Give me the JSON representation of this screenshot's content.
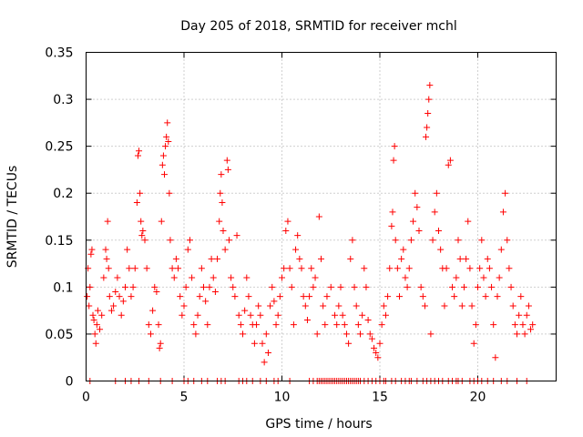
{
  "chart_data": {
    "type": "scatter",
    "title": "Day 205 of 2018, SRMTID for receiver mchl",
    "xlabel": "GPS time / hours",
    "ylabel": "SRMTID / TECUs",
    "xlim": [
      0,
      24
    ],
    "ylim": [
      0,
      0.35
    ],
    "xticks": [
      0,
      5,
      10,
      15,
      20
    ],
    "xtick_labels": [
      "0",
      "5",
      "10",
      "15",
      "20"
    ],
    "yticks": [
      0,
      0.05,
      0.1,
      0.15,
      0.2,
      0.25,
      0.3,
      0.35
    ],
    "ytick_labels": [
      "0",
      "0.05",
      "0.1",
      "0.15",
      "0.2",
      "0.25",
      "0.3",
      "0.35"
    ],
    "grid": true,
    "marker": "plus",
    "color": "#ff0000",
    "series": [
      {
        "name": "SRMTID",
        "points": [
          [
            0.05,
            0.09
          ],
          [
            0.1,
            0.12
          ],
          [
            0.15,
            0.08
          ],
          [
            0.2,
            0.1
          ],
          [
            0.25,
            0.135
          ],
          [
            0.3,
            0.14
          ],
          [
            0.35,
            0.07
          ],
          [
            0.4,
            0.065
          ],
          [
            0.45,
            0.05
          ],
          [
            0.5,
            0.04
          ],
          [
            0.55,
            0.06
          ],
          [
            0.6,
            0.075
          ],
          [
            0.7,
            0.055
          ],
          [
            0.8,
            0.07
          ],
          [
            0.9,
            0.11
          ],
          [
            1.0,
            0.14
          ],
          [
            1.05,
            0.13
          ],
          [
            1.1,
            0.17
          ],
          [
            1.15,
            0.12
          ],
          [
            1.2,
            0.09
          ],
          [
            1.3,
            0.075
          ],
          [
            1.4,
            0.08
          ],
          [
            1.5,
            0.095
          ],
          [
            1.6,
            0.11
          ],
          [
            1.7,
            0.09
          ],
          [
            1.8,
            0.07
          ],
          [
            1.9,
            0.085
          ],
          [
            2.0,
            0.1
          ],
          [
            2.1,
            0.14
          ],
          [
            2.2,
            0.12
          ],
          [
            2.3,
            0.09
          ],
          [
            2.4,
            0.1
          ],
          [
            2.5,
            0.12
          ],
          [
            2.6,
            0.19
          ],
          [
            2.65,
            0.24
          ],
          [
            2.7,
            0.245
          ],
          [
            2.75,
            0.2
          ],
          [
            2.8,
            0.17
          ],
          [
            2.85,
            0.155
          ],
          [
            2.9,
            0.16
          ],
          [
            3.0,
            0.15
          ],
          [
            3.1,
            0.12
          ],
          [
            3.2,
            0.06
          ],
          [
            3.3,
            0.05
          ],
          [
            3.4,
            0.075
          ],
          [
            3.5,
            0.1
          ],
          [
            3.6,
            0.095
          ],
          [
            3.7,
            0.06
          ],
          [
            3.75,
            0.035
          ],
          [
            3.8,
            0.04
          ],
          [
            3.85,
            0.17
          ],
          [
            3.9,
            0.23
          ],
          [
            3.95,
            0.24
          ],
          [
            4.0,
            0.22
          ],
          [
            4.05,
            0.25
          ],
          [
            4.1,
            0.26
          ],
          [
            4.15,
            0.275
          ],
          [
            4.2,
            0.255
          ],
          [
            4.25,
            0.2
          ],
          [
            4.3,
            0.15
          ],
          [
            4.4,
            0.12
          ],
          [
            4.5,
            0.11
          ],
          [
            4.6,
            0.13
          ],
          [
            4.7,
            0.12
          ],
          [
            4.8,
            0.09
          ],
          [
            4.9,
            0.07
          ],
          [
            5.0,
            0.08
          ],
          [
            5.1,
            0.1
          ],
          [
            5.2,
            0.14
          ],
          [
            5.3,
            0.15
          ],
          [
            5.4,
            0.11
          ],
          [
            5.5,
            0.06
          ],
          [
            5.6,
            0.05
          ],
          [
            5.7,
            0.07
          ],
          [
            5.8,
            0.09
          ],
          [
            5.9,
            0.12
          ],
          [
            6.0,
            0.1
          ],
          [
            6.1,
            0.085
          ],
          [
            6.2,
            0.06
          ],
          [
            6.3,
            0.1
          ],
          [
            6.4,
            0.13
          ],
          [
            6.5,
            0.11
          ],
          [
            6.6,
            0.095
          ],
          [
            6.7,
            0.13
          ],
          [
            6.8,
            0.17
          ],
          [
            6.85,
            0.2
          ],
          [
            6.9,
            0.22
          ],
          [
            6.95,
            0.19
          ],
          [
            7.0,
            0.16
          ],
          [
            7.1,
            0.14
          ],
          [
            7.2,
            0.235
          ],
          [
            7.25,
            0.225
          ],
          [
            7.3,
            0.15
          ],
          [
            7.4,
            0.11
          ],
          [
            7.5,
            0.1
          ],
          [
            7.6,
            0.09
          ],
          [
            7.7,
            0.155
          ],
          [
            7.8,
            0.07
          ],
          [
            7.9,
            0.06
          ],
          [
            8.0,
            0.05
          ],
          [
            8.1,
            0.075
          ],
          [
            8.2,
            0.11
          ],
          [
            8.3,
            0.09
          ],
          [
            8.4,
            0.07
          ],
          [
            8.5,
            0.06
          ],
          [
            8.6,
            0.04
          ],
          [
            8.7,
            0.06
          ],
          [
            8.8,
            0.08
          ],
          [
            8.9,
            0.07
          ],
          [
            9.0,
            0.04
          ],
          [
            9.1,
            0.02
          ],
          [
            9.2,
            0.05
          ],
          [
            9.3,
            0.03
          ],
          [
            9.4,
            0.08
          ],
          [
            9.5,
            0.1
          ],
          [
            9.6,
            0.085
          ],
          [
            9.7,
            0.06
          ],
          [
            9.8,
            0.07
          ],
          [
            9.9,
            0.09
          ],
          [
            10.0,
            0.11
          ],
          [
            10.1,
            0.12
          ],
          [
            10.2,
            0.16
          ],
          [
            10.3,
            0.17
          ],
          [
            10.4,
            0.12
          ],
          [
            10.5,
            0.1
          ],
          [
            10.6,
            0.06
          ],
          [
            10.7,
            0.14
          ],
          [
            10.8,
            0.155
          ],
          [
            10.9,
            0.13
          ],
          [
            11.0,
            0.12
          ],
          [
            11.1,
            0.09
          ],
          [
            11.2,
            0.08
          ],
          [
            11.3,
            0.065
          ],
          [
            11.4,
            0.09
          ],
          [
            11.5,
            0.12
          ],
          [
            11.6,
            0.1
          ],
          [
            11.7,
            0.11
          ],
          [
            11.8,
            0.05
          ],
          [
            11.9,
            0.175
          ],
          [
            12.0,
            0.13
          ],
          [
            12.1,
            0.08
          ],
          [
            12.2,
            0.06
          ],
          [
            12.3,
            0.09
          ],
          [
            12.5,
            0.1
          ],
          [
            12.7,
            0.07
          ],
          [
            12.8,
            0.06
          ],
          [
            12.9,
            0.08
          ],
          [
            13.0,
            0.1
          ],
          [
            13.1,
            0.07
          ],
          [
            13.2,
            0.06
          ],
          [
            13.3,
            0.05
          ],
          [
            13.4,
            0.04
          ],
          [
            13.5,
            0.13
          ],
          [
            13.6,
            0.15
          ],
          [
            13.7,
            0.1
          ],
          [
            13.8,
            0.08
          ],
          [
            13.9,
            0.06
          ],
          [
            14.0,
            0.05
          ],
          [
            14.1,
            0.07
          ],
          [
            14.2,
            0.12
          ],
          [
            14.3,
            0.1
          ],
          [
            14.4,
            0.065
          ],
          [
            14.5,
            0.05
          ],
          [
            14.6,
            0.045
          ],
          [
            14.7,
            0.035
          ],
          [
            14.8,
            0.03
          ],
          [
            14.9,
            0.025
          ],
          [
            15.0,
            0.04
          ],
          [
            15.1,
            0.06
          ],
          [
            15.2,
            0.08
          ],
          [
            15.3,
            0.07
          ],
          [
            15.4,
            0.09
          ],
          [
            15.5,
            0.12
          ],
          [
            15.6,
            0.165
          ],
          [
            15.65,
            0.18
          ],
          [
            15.7,
            0.235
          ],
          [
            15.75,
            0.25
          ],
          [
            15.8,
            0.15
          ],
          [
            15.9,
            0.12
          ],
          [
            16.0,
            0.09
          ],
          [
            16.1,
            0.13
          ],
          [
            16.2,
            0.14
          ],
          [
            16.3,
            0.11
          ],
          [
            16.4,
            0.1
          ],
          [
            16.5,
            0.12
          ],
          [
            16.6,
            0.15
          ],
          [
            16.7,
            0.17
          ],
          [
            16.8,
            0.2
          ],
          [
            16.9,
            0.185
          ],
          [
            17.0,
            0.16
          ],
          [
            17.1,
            0.1
          ],
          [
            17.2,
            0.09
          ],
          [
            17.3,
            0.08
          ],
          [
            17.35,
            0.26
          ],
          [
            17.4,
            0.27
          ],
          [
            17.45,
            0.285
          ],
          [
            17.5,
            0.3
          ],
          [
            17.55,
            0.315
          ],
          [
            17.6,
            0.05
          ],
          [
            17.7,
            0.15
          ],
          [
            17.8,
            0.18
          ],
          [
            17.9,
            0.2
          ],
          [
            18.0,
            0.16
          ],
          [
            18.1,
            0.14
          ],
          [
            18.2,
            0.12
          ],
          [
            18.3,
            0.08
          ],
          [
            18.4,
            0.12
          ],
          [
            18.5,
            0.23
          ],
          [
            18.6,
            0.235
          ],
          [
            18.7,
            0.1
          ],
          [
            18.8,
            0.09
          ],
          [
            18.9,
            0.11
          ],
          [
            19.0,
            0.15
          ],
          [
            19.1,
            0.13
          ],
          [
            19.2,
            0.08
          ],
          [
            19.3,
            0.1
          ],
          [
            19.4,
            0.13
          ],
          [
            19.5,
            0.17
          ],
          [
            19.6,
            0.12
          ],
          [
            19.7,
            0.08
          ],
          [
            19.8,
            0.04
          ],
          [
            19.9,
            0.06
          ],
          [
            20.0,
            0.1
          ],
          [
            20.1,
            0.12
          ],
          [
            20.2,
            0.15
          ],
          [
            20.3,
            0.11
          ],
          [
            20.4,
            0.09
          ],
          [
            20.5,
            0.13
          ],
          [
            20.6,
            0.12
          ],
          [
            20.7,
            0.1
          ],
          [
            20.8,
            0.06
          ],
          [
            20.9,
            0.025
          ],
          [
            21.0,
            0.09
          ],
          [
            21.1,
            0.11
          ],
          [
            21.2,
            0.14
          ],
          [
            21.3,
            0.18
          ],
          [
            21.4,
            0.2
          ],
          [
            21.5,
            0.15
          ],
          [
            21.6,
            0.12
          ],
          [
            21.7,
            0.1
          ],
          [
            21.8,
            0.08
          ],
          [
            21.9,
            0.06
          ],
          [
            22.0,
            0.05
          ],
          [
            22.1,
            0.07
          ],
          [
            22.2,
            0.09
          ],
          [
            22.3,
            0.06
          ],
          [
            22.4,
            0.05
          ],
          [
            22.5,
            0.07
          ],
          [
            22.6,
            0.08
          ],
          [
            22.7,
            0.055
          ],
          [
            22.8,
            0.06
          ]
        ],
        "zero_points_x": [
          0.2,
          1.5,
          2.0,
          2.3,
          2.7,
          3.2,
          3.8,
          4.4,
          5.0,
          5.2,
          5.5,
          5.9,
          6.2,
          6.7,
          6.9,
          7.1,
          7.8,
          8.0,
          8.2,
          8.5,
          8.9,
          9.2,
          9.6,
          9.8,
          10.4,
          11.4,
          11.6,
          11.8,
          11.9,
          12.0,
          12.1,
          12.2,
          12.3,
          12.4,
          12.5,
          12.6,
          12.7,
          12.8,
          12.9,
          13.0,
          13.1,
          13.2,
          13.3,
          13.4,
          13.5,
          13.6,
          13.7,
          13.8,
          13.9,
          14.0,
          14.2,
          14.4,
          14.6,
          14.8,
          15.0,
          15.2,
          15.3,
          15.6,
          15.8,
          16.1,
          16.3,
          16.5,
          16.6,
          16.9,
          17.2,
          17.4,
          17.6,
          17.8,
          18.0,
          18.2,
          18.5,
          18.7,
          18.9,
          19.0,
          19.2,
          19.6,
          19.8,
          20.0,
          20.2,
          20.5,
          20.8,
          21.2,
          21.5,
          22.0,
          22.5
        ]
      }
    ]
  }
}
